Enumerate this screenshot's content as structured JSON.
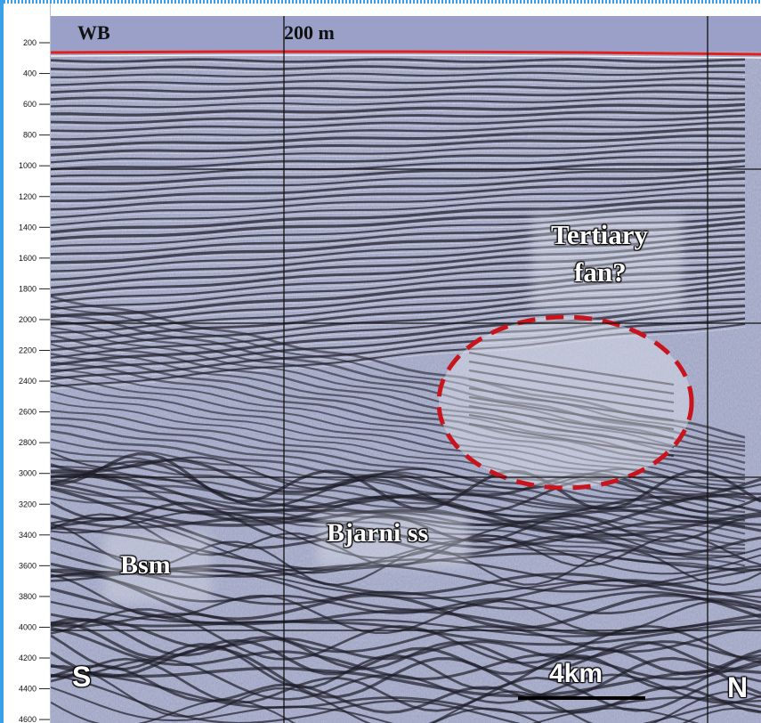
{
  "labels": {
    "wb": "WB",
    "depth_marker": "200 m",
    "tertiary_line1": "Tertiary",
    "tertiary_line2": "fan?",
    "bjarni": "Bjarni ss",
    "bsm": "Bsm",
    "south": "S",
    "north": "N",
    "scale": "4km"
  },
  "axis": {
    "ticks": [
      "200",
      "400",
      "600",
      "800",
      "1000",
      "1200",
      "1400",
      "1600",
      "1800",
      "2000",
      "2200",
      "2400",
      "2600",
      "2800",
      "3000",
      "3200",
      "3400",
      "3600",
      "3800",
      "4000",
      "4200",
      "4400",
      "4600"
    ]
  },
  "colors": {
    "frame": "#3aa0ea",
    "water": "#9aa0c8",
    "seafloor": "#e0201c",
    "seismic_base": "#b4bad8",
    "anomaly_outline": "#c8141c"
  }
}
